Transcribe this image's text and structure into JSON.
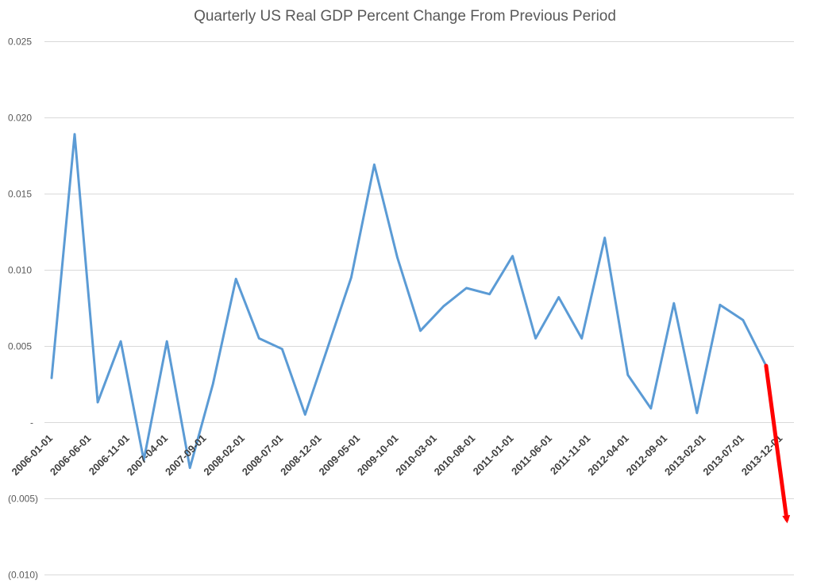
{
  "chart_data": {
    "type": "line",
    "title": "Quarterly US Real GDP Percent Change From Previous Period",
    "xlabel": "",
    "ylabel": "",
    "ylim": [
      -0.01,
      0.025
    ],
    "y_ticks": [
      {
        "value": 0.025,
        "label": "0.025"
      },
      {
        "value": 0.02,
        "label": "0.020"
      },
      {
        "value": 0.015,
        "label": "0.015"
      },
      {
        "value": 0.01,
        "label": "0.010"
      },
      {
        "value": 0.005,
        "label": "0.005"
      },
      {
        "value": 0,
        "label": "-"
      },
      {
        "value": -0.005,
        "label": "(0.005)"
      },
      {
        "value": -0.01,
        "label": "(0.010)"
      }
    ],
    "x_tick_labels": [
      "2006-01-01",
      "2006-06-01",
      "2006-11-01",
      "2007-04-01",
      "2007-09-01",
      "2008-02-01",
      "2008-07-01",
      "2008-12-01",
      "2009-05-01",
      "2009-10-01",
      "2010-03-01",
      "2010-08-01",
      "2011-01-01",
      "2011-06-01",
      "2011-11-01",
      "2012-04-01",
      "2012-09-01",
      "2013-02-01",
      "2013-07-01",
      "2013-12-01"
    ],
    "grid": true,
    "series": [
      {
        "color": "#5b9bd5",
        "values": [
          0.0029,
          0.0189,
          0.0013,
          0.0053,
          -0.0025,
          0.0053,
          -0.003,
          0.0025,
          0.0094,
          0.0055,
          0.0048,
          0.0005,
          0.005,
          0.0095,
          0.0169,
          0.0108,
          0.006,
          0.0076,
          0.0088,
          0.0084,
          0.0109,
          0.0055,
          0.0082,
          0.0055,
          0.0121,
          0.0031,
          0.0009,
          0.0078,
          0.0006,
          0.0077,
          0.0067,
          0.0037
        ]
      }
    ],
    "annotation": {
      "type": "arrow",
      "color": "#ff0000",
      "from": {
        "x_index": 31,
        "y": 0.0037
      },
      "to_y": -0.0067
    }
  }
}
